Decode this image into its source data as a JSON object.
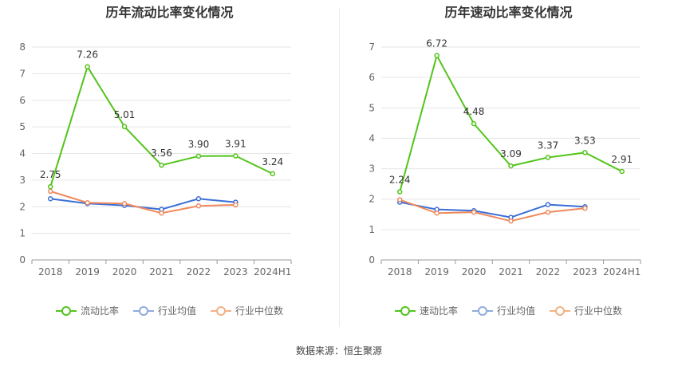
{
  "chart_data": [
    {
      "type": "line",
      "title": "历年流动比率变化情况",
      "categories": [
        "2018",
        "2019",
        "2020",
        "2021",
        "2022",
        "2023",
        "2024H1"
      ],
      "ylim": [
        0,
        8
      ],
      "yticks": [
        0,
        1,
        2,
        3,
        4,
        5,
        6,
        7,
        8
      ],
      "grid": true,
      "legend_position": "bottom",
      "series": [
        {
          "name": "流动比率",
          "color": "#52c41a",
          "values": [
            2.75,
            7.26,
            5.01,
            3.56,
            3.9,
            3.91,
            3.24
          ],
          "labels": [
            "2.75",
            "7.26",
            "5.01",
            "3.56",
            "3.90",
            "3.91",
            "3.24"
          ]
        },
        {
          "name": "行业均值",
          "color": "#3a6fd8",
          "values": [
            2.3,
            2.12,
            2.05,
            1.9,
            2.3,
            2.17,
            null
          ]
        },
        {
          "name": "行业中位数",
          "color": "#f08a5d",
          "values": [
            2.58,
            2.15,
            2.12,
            1.76,
            2.03,
            2.07,
            null
          ]
        }
      ]
    },
    {
      "type": "line",
      "title": "历年速动比率变化情况",
      "categories": [
        "2018",
        "2019",
        "2020",
        "2021",
        "2022",
        "2023",
        "2024H1"
      ],
      "ylim": [
        0,
        7
      ],
      "yticks": [
        0,
        1,
        2,
        3,
        4,
        5,
        6,
        7
      ],
      "grid": true,
      "legend_position": "bottom",
      "series": [
        {
          "name": "速动比率",
          "color": "#52c41a",
          "values": [
            2.24,
            6.72,
            4.48,
            3.09,
            3.37,
            3.53,
            2.91
          ],
          "labels": [
            "2.24",
            "6.72",
            "4.48",
            "3.09",
            "3.37",
            "3.53",
            "2.91"
          ]
        },
        {
          "name": "行业均值",
          "color": "#3a6fd8",
          "values": [
            1.9,
            1.66,
            1.62,
            1.4,
            1.82,
            1.75,
            null
          ]
        },
        {
          "name": "行业中位数",
          "color": "#f08a5d",
          "values": [
            1.98,
            1.54,
            1.57,
            1.28,
            1.57,
            1.7,
            null
          ]
        }
      ]
    }
  ],
  "legend_colors": {
    "流动比率": "#52c41a",
    "速动比率": "#52c41a",
    "行业均值": "#8faadc",
    "行业中位数": "#f4b183"
  },
  "source": "数据来源：恒生聚源"
}
